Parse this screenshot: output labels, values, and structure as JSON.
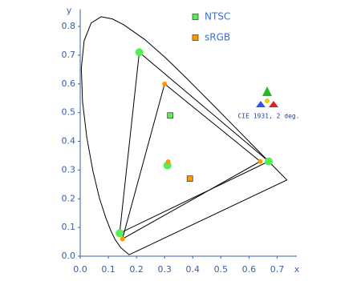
{
  "chart_data": {
    "type": "chromaticity",
    "x_label": "x",
    "y_label": "y",
    "xlim": [
      0,
      0.77
    ],
    "ylim": [
      0,
      0.86
    ],
    "xticks": [
      {
        "value": 0,
        "label": "0.0"
      },
      0.1,
      0.2,
      0.3,
      0.4,
      0.5,
      0.6,
      0.7
    ],
    "yticks": [
      {
        "value": 0,
        "label": "0.0"
      },
      0.1,
      0.2,
      0.3,
      0.4,
      0.5,
      0.6,
      0.7,
      0.8
    ],
    "logo_text": "CIE 1931, 2 deg.",
    "locus": {
      "x": [
        0.1741,
        0.144,
        0.1241,
        0.1096,
        0.0913,
        0.0687,
        0.0454,
        0.0235,
        0.0082,
        0.0039,
        0.0139,
        0.0389,
        0.0743,
        0.1142,
        0.1547,
        0.2296,
        0.3016,
        0.3731,
        0.4441,
        0.5125,
        0.5752,
        0.627,
        0.6915,
        0.7347
      ],
      "y": [
        0.005,
        0.0297,
        0.0578,
        0.0868,
        0.1327,
        0.2007,
        0.295,
        0.4127,
        0.5384,
        0.6548,
        0.7502,
        0.812,
        0.8338,
        0.8262,
        0.8059,
        0.7543,
        0.6923,
        0.6245,
        0.5547,
        0.4866,
        0.4242,
        0.3725,
        0.3083,
        0.2653
      ]
    },
    "series": [
      {
        "name": "NTSC",
        "color": "#55ee55",
        "x": [
          0.67,
          0.21,
          0.14
        ],
        "y": [
          0.33,
          0.71,
          0.08
        ],
        "white": [
          0.31,
          0.316
        ],
        "square": [
          0.32,
          0.49
        ]
      },
      {
        "name": "sRGB",
        "color": "#ff9900",
        "x": [
          0.64,
          0.3,
          0.15
        ],
        "y": [
          0.33,
          0.6,
          0.06
        ],
        "white": [
          0.3127,
          0.329
        ],
        "square": [
          0.39,
          0.27
        ]
      }
    ]
  }
}
